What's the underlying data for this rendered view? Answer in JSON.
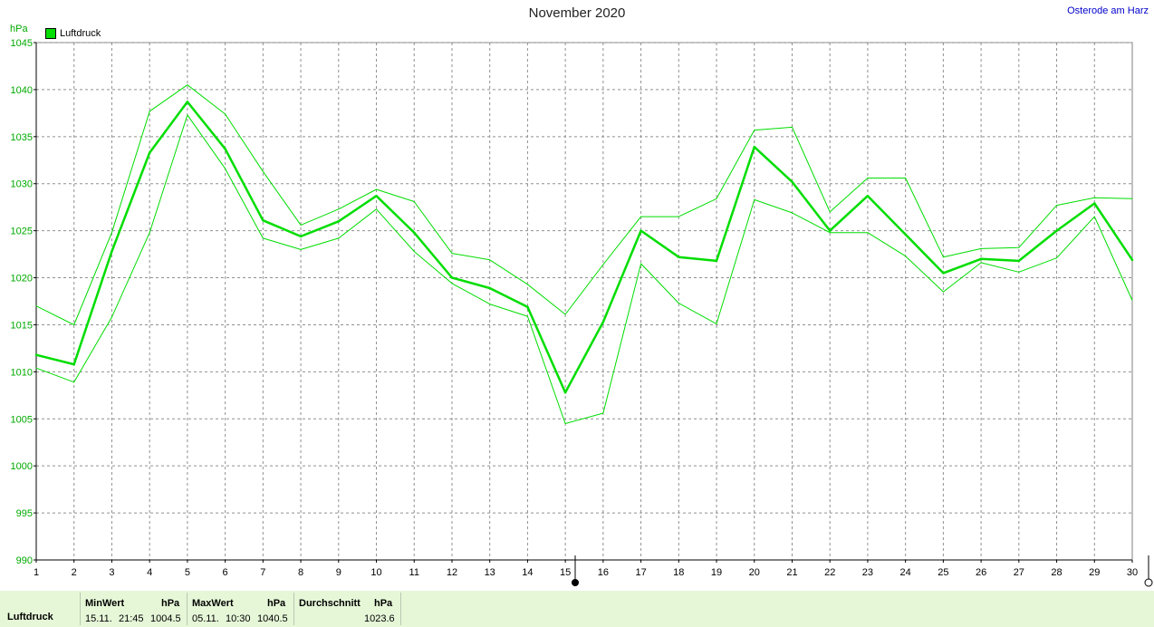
{
  "header": {
    "title": "November 2020",
    "location": "Osterode am Harz",
    "unit": "hPa"
  },
  "legend": {
    "label": "Luftdruck",
    "color": "#00dd00"
  },
  "chart_data": {
    "type": "line",
    "title": "November 2020",
    "ylabel": "hPa",
    "xlabel": "",
    "x": [
      1,
      2,
      3,
      4,
      5,
      6,
      7,
      8,
      9,
      10,
      11,
      12,
      13,
      14,
      15,
      16,
      17,
      18,
      19,
      20,
      21,
      22,
      23,
      24,
      25,
      26,
      27,
      28,
      29,
      30
    ],
    "ylim": [
      990,
      1045
    ],
    "yticks": [
      990,
      995,
      1000,
      1005,
      1010,
      1015,
      1020,
      1025,
      1030,
      1035,
      1040,
      1045
    ],
    "grid": true,
    "legend_position": "top-left",
    "series": [
      {
        "name": "Luftdruck",
        "role": "mean",
        "color": "#00dd00",
        "values": [
          1011.8,
          1010.8,
          1022.8,
          1033.3,
          1038.7,
          1033.7,
          1026.1,
          1024.4,
          1026.0,
          1028.7,
          1024.8,
          1020.0,
          1018.9,
          1016.9,
          1007.8,
          1015.3,
          1025.0,
          1022.2,
          1021.8,
          1033.9,
          1030.2,
          1025.0,
          1028.7,
          1024.6,
          1020.5,
          1022.0,
          1021.8,
          1025.0,
          1027.9,
          1021.9
        ]
      },
      {
        "role": "max",
        "color": "#00dd00",
        "values": [
          1017.0,
          1015.0,
          1024.8,
          1037.7,
          1040.5,
          1037.4,
          1031.3,
          1025.6,
          1027.3,
          1029.4,
          1028.1,
          1022.6,
          1021.9,
          1019.3,
          1016.1,
          1021.4,
          1026.5,
          1026.5,
          1028.4,
          1035.7,
          1036.0,
          1027.0,
          1030.6,
          1030.6,
          1022.2,
          1023.1,
          1023.2,
          1027.7,
          1028.5,
          1028.4
        ]
      },
      {
        "role": "min",
        "color": "#00dd00",
        "values": [
          1010.4,
          1008.9,
          1015.8,
          1024.8,
          1037.3,
          1031.6,
          1024.2,
          1023.0,
          1024.2,
          1027.3,
          1022.8,
          1019.4,
          1017.2,
          1015.9,
          1004.5,
          1005.6,
          1021.5,
          1017.3,
          1015.1,
          1028.3,
          1026.9,
          1024.8,
          1024.8,
          1022.3,
          1018.5,
          1021.6,
          1020.6,
          1022.1,
          1026.5,
          1017.6
        ]
      }
    ]
  },
  "stats": {
    "name": "Luftdruck",
    "min": {
      "label": "MinWert",
      "unit": "hPa",
      "date": "15.11.",
      "time": "21:45",
      "value": "1004.5"
    },
    "max": {
      "label": "MaxWert",
      "unit": "hPa",
      "date": "05.11.",
      "time": "10:30",
      "value": "1040.5"
    },
    "avg": {
      "label": "Durchschnitt",
      "unit": "hPa",
      "value": "1023.6"
    }
  }
}
